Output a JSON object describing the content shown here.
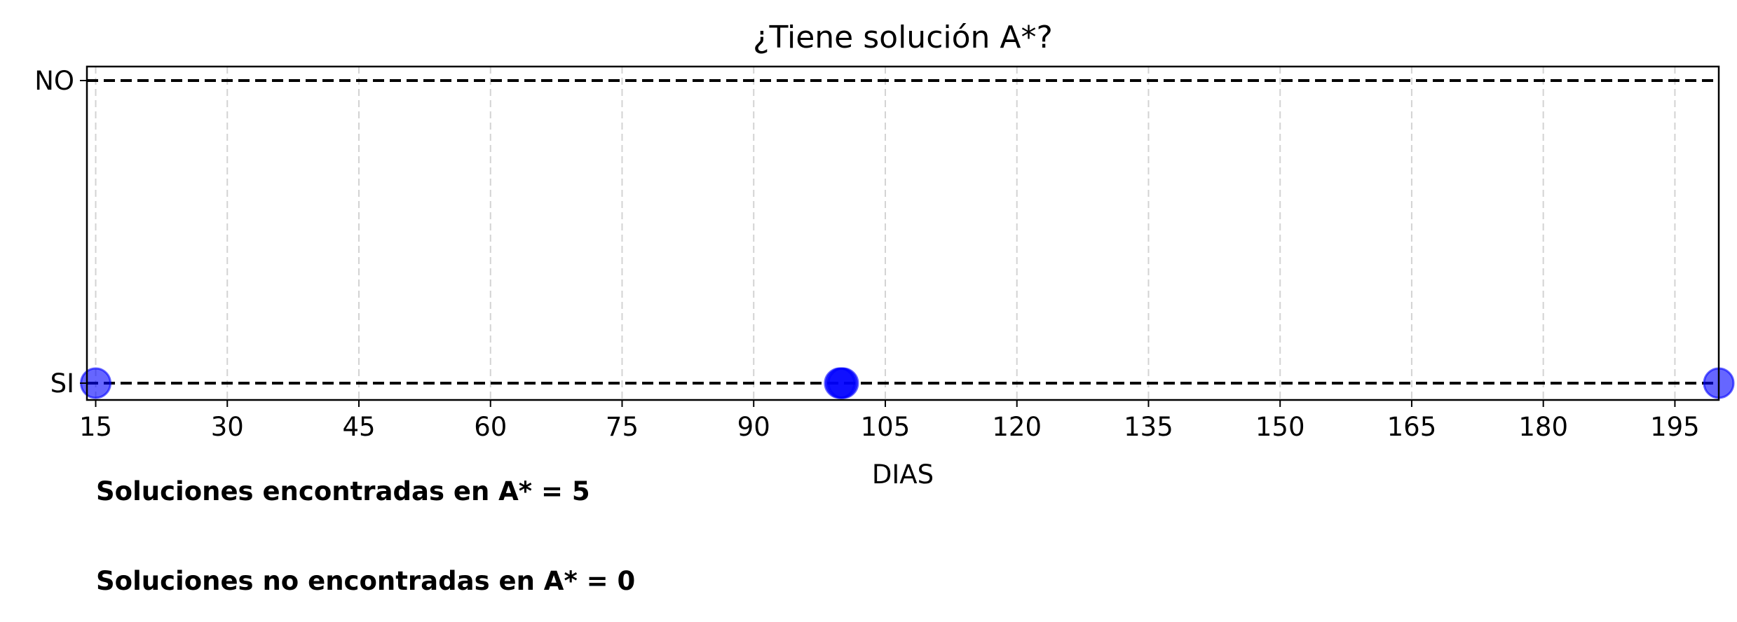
{
  "chart_data": {
    "type": "scatter",
    "title": "¿Tiene solución A*?",
    "xlabel": "DIAS",
    "ylabel": "",
    "xlim": [
      14,
      200
    ],
    "xticks": [
      15,
      30,
      45,
      60,
      75,
      90,
      105,
      120,
      135,
      150,
      165,
      180,
      195
    ],
    "yticks": [
      "SI",
      "NO"
    ],
    "reference_lines": [
      "SI",
      "NO"
    ],
    "grid": "vertical dashed",
    "marker_color": "#0000ff",
    "points": [
      {
        "x": 15,
        "y": "SI"
      },
      {
        "x": 99.8,
        "y": "SI"
      },
      {
        "x": 100,
        "y": "SI"
      },
      {
        "x": 100.2,
        "y": "SI"
      },
      {
        "x": 200,
        "y": "SI"
      }
    ]
  },
  "notes": {
    "found": "Soluciones encontradas en A* = 5",
    "not_found": "Soluciones no encontradas en A* = 0"
  }
}
